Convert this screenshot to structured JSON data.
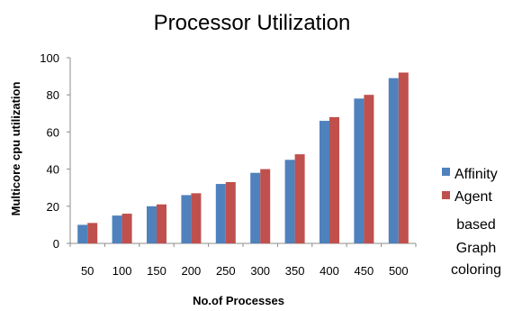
{
  "chart_data": {
    "type": "bar",
    "title": "Processor Utilization",
    "xlabel": "No.of Processes",
    "ylabel": "Multicore cpu utilization",
    "categories": [
      "50",
      "100",
      "150",
      "200",
      "250",
      "300",
      "350",
      "400",
      "450",
      "500"
    ],
    "ylim": [
      0,
      100
    ],
    "yticks": [
      0,
      20,
      40,
      60,
      80,
      100
    ],
    "grid": false,
    "legend_position": "right",
    "series": [
      {
        "name": "Affinity",
        "legend_lines": [
          "Affinity"
        ],
        "color": "#4f81bd",
        "values": [
          10,
          15,
          20,
          26,
          32,
          38,
          45,
          66,
          78,
          89
        ]
      },
      {
        "name": "Agent based Graph coloring",
        "legend_lines": [
          "Agent",
          "based",
          "Graph",
          "coloring"
        ],
        "color": "#c0504d",
        "values": [
          11,
          16,
          21,
          27,
          33,
          40,
          48,
          68,
          80,
          92
        ]
      }
    ]
  }
}
